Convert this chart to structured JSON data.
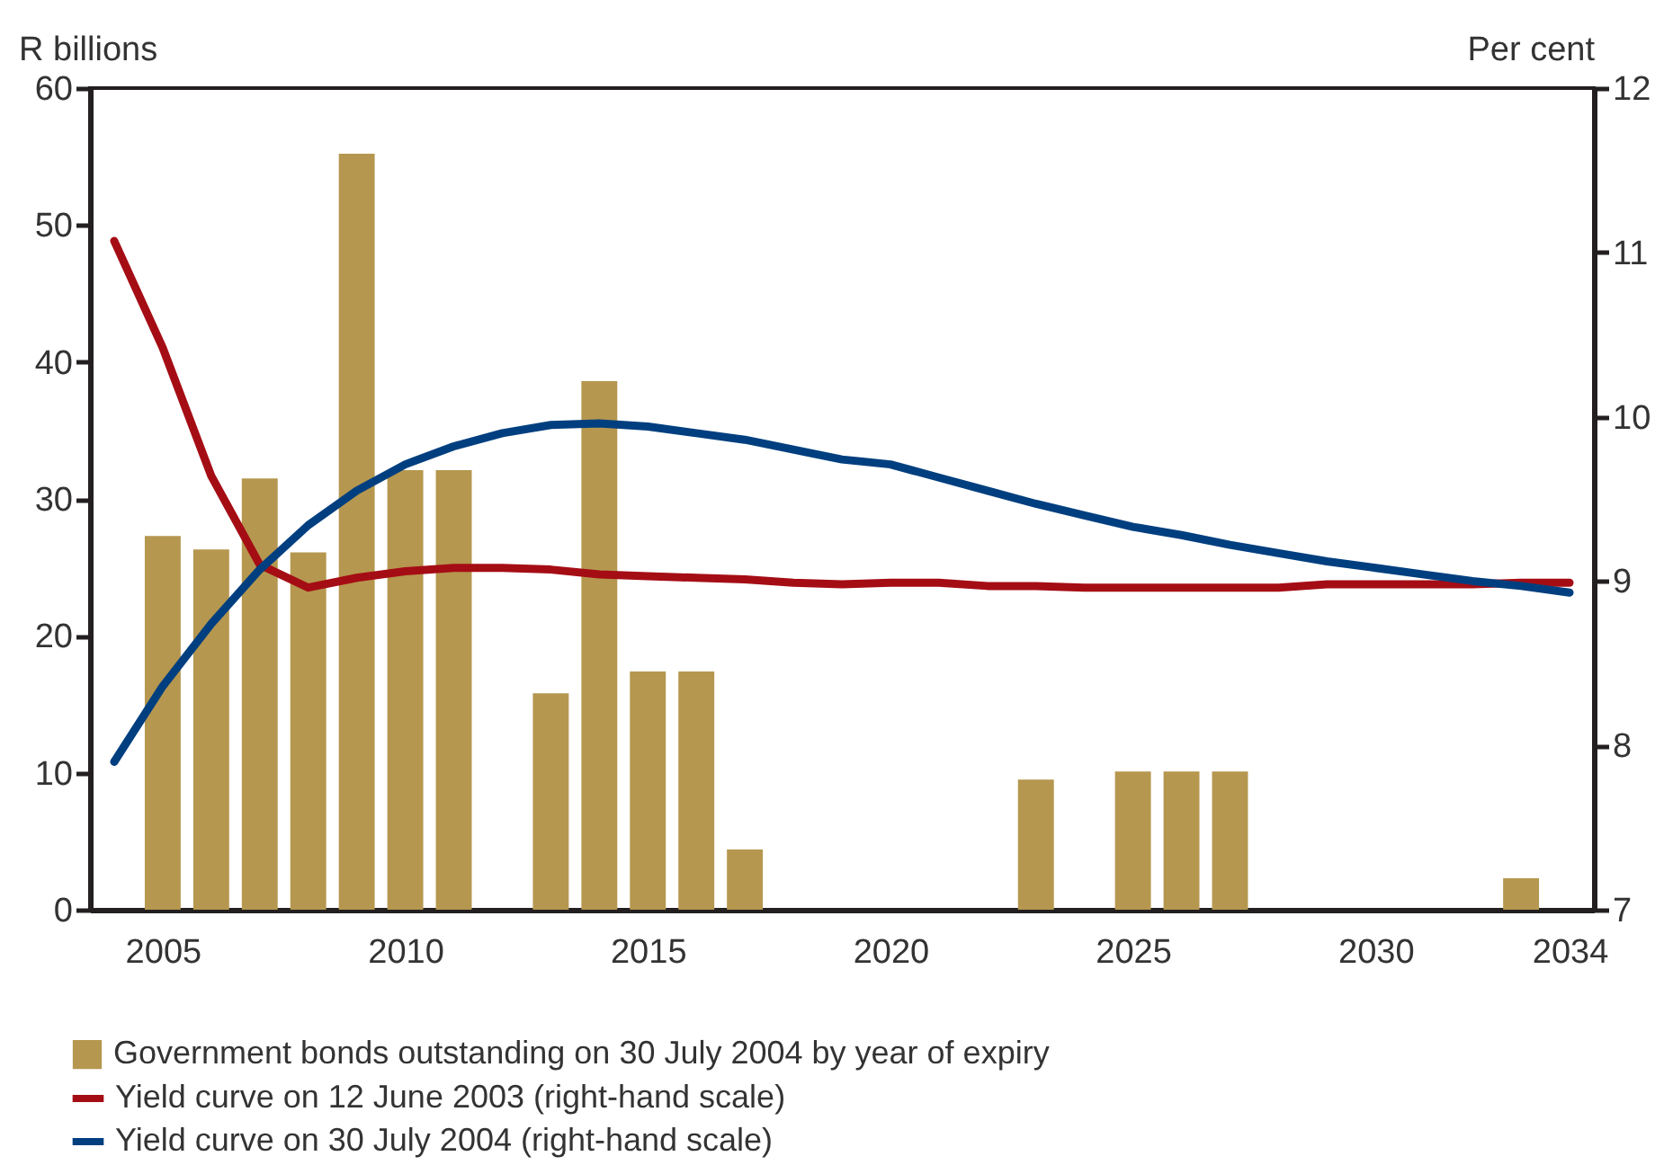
{
  "chart_data": {
    "type": "bar",
    "categories": [
      null,
      "2005",
      null,
      null,
      null,
      null,
      "2010",
      null,
      null,
      null,
      null,
      "2015",
      null,
      null,
      null,
      null,
      "2020",
      null,
      null,
      null,
      null,
      "2025",
      null,
      null,
      null,
      null,
      "2030",
      null,
      null,
      null,
      "2034"
    ],
    "ylabel": "R billions",
    "y2label": "Per cent",
    "ylim": [
      0,
      60
    ],
    "yticks": [
      0,
      10,
      20,
      30,
      40,
      50,
      60
    ],
    "y2lim": [
      7,
      12
    ],
    "y2ticks": [
      7,
      8,
      9,
      10,
      11,
      12
    ],
    "legend": "bottom left",
    "grid": false,
    "series": [
      {
        "name": "Government bonds outstanding on 30 July 2004 by year of expiry",
        "color": "#b5974f",
        "values": [
          null,
          27.3,
          26.3,
          31.5,
          26.1,
          55.2,
          32.1,
          32.1,
          null,
          15.8,
          38.6,
          17.4,
          17.4,
          4.4,
          null,
          null,
          null,
          null,
          null,
          9.5,
          null,
          10.1,
          10.1,
          10.1,
          null,
          null,
          null,
          null,
          null,
          2.3,
          null
        ]
      },
      {
        "name": "Yield curve on 12 June 2003 (right-hand scale)",
        "type": "line",
        "axis": "y2",
        "color": "#a50d15",
        "values": [
          11.07,
          10.42,
          9.64,
          9.1,
          8.96,
          9.02,
          9.06,
          9.08,
          9.08,
          9.07,
          9.04,
          9.03,
          9.02,
          9.01,
          8.99,
          8.98,
          8.99,
          8.99,
          8.97,
          8.97,
          8.96,
          8.96,
          8.96,
          8.96,
          8.96,
          8.98,
          8.98,
          8.98,
          8.98,
          8.99,
          8.99
        ]
      },
      {
        "name": "Yield curve on 30 July 2004 (right-hand scale)",
        "type": "line",
        "axis": "y2",
        "color": "#003f7f",
        "values": [
          7.9,
          8.36,
          8.74,
          9.07,
          9.34,
          9.55,
          9.71,
          9.82,
          9.9,
          9.95,
          9.96,
          9.94,
          9.9,
          9.86,
          9.8,
          9.74,
          9.71,
          9.63,
          9.55,
          9.47,
          9.4,
          9.33,
          9.28,
          9.22,
          9.17,
          9.12,
          9.08,
          9.04,
          9.0,
          8.97,
          8.93
        ]
      }
    ]
  }
}
